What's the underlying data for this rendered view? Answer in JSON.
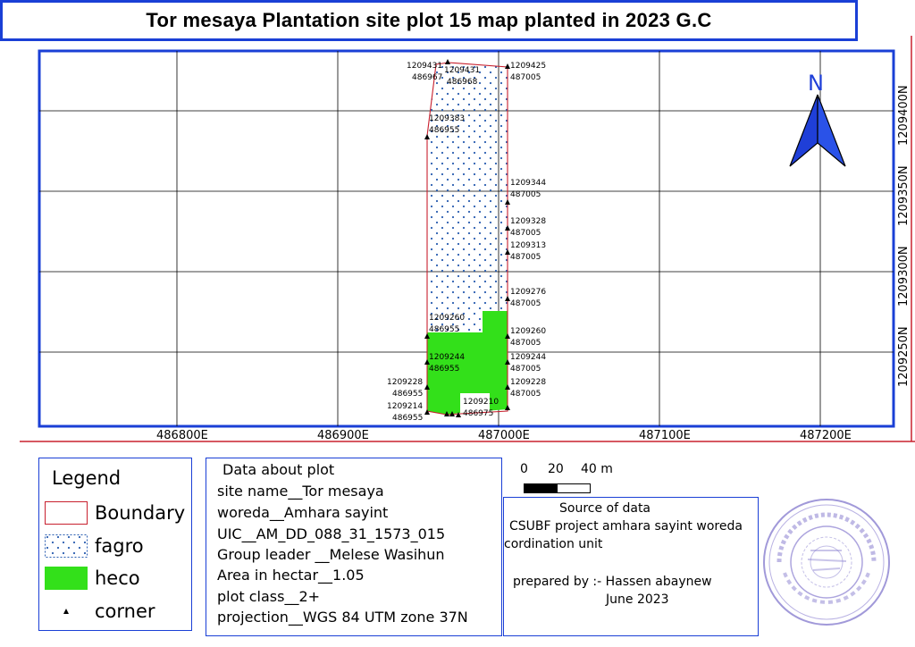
{
  "title": "Tor mesaya Plantation site plot 15 map planted in 2023 G.C",
  "map": {
    "north_label": "N",
    "easting_labels": [
      "486800E",
      "486900E",
      "487000E",
      "487100E",
      "487200E"
    ],
    "northing_labels": [
      "1209250N",
      "1209300N",
      "1209350N",
      "1209400N"
    ],
    "colors": {
      "boundary": "#c8202e",
      "fagro_dots": "#2a5db0",
      "heco": "#33e01a",
      "frame": "#1a3fd6",
      "north_arrow": "#1f3fd8"
    },
    "corner_points": [
      {
        "n": "1209431",
        "e": "486967"
      },
      {
        "n": "1209431",
        "e": "486968"
      },
      {
        "n": "1209425",
        "e": "487005"
      },
      {
        "n": "1209383",
        "e": "486955"
      },
      {
        "n": "1209344",
        "e": "487005"
      },
      {
        "n": "1209328",
        "e": "487005"
      },
      {
        "n": "1209313",
        "e": "487005"
      },
      {
        "n": "1209276",
        "e": "487005"
      },
      {
        "n": "1209260",
        "e": "486955"
      },
      {
        "n": "1209260",
        "e": "487005"
      },
      {
        "n": "1209244",
        "e": "486955"
      },
      {
        "n": "1209244",
        "e": "487005"
      },
      {
        "n": "1209228",
        "e": "486955"
      },
      {
        "n": "1209228",
        "e": "487005"
      },
      {
        "n": "1209214",
        "e": "486955"
      },
      {
        "n": "1209210",
        "e": "486975"
      }
    ]
  },
  "legend": {
    "title": "Legend",
    "items": [
      {
        "label": "Boundary",
        "type": "boundary"
      },
      {
        "label": "fagro",
        "type": "fagro"
      },
      {
        "label": "heco",
        "type": "heco"
      },
      {
        "label": "corner",
        "type": "corner"
      }
    ]
  },
  "plot_info": {
    "heading": "Data about plot",
    "lines": [
      "site name__Tor mesaya",
      "woreda__Amhara sayint",
      "UIC__AM_DD_088_31_1573_015",
      "Group leader __Melese Wasihun",
      "Area in hectar__1.05",
      "plot class__2+",
      "projection__WGS 84 UTM zone 37N"
    ]
  },
  "scale_bar": {
    "labels": [
      "0",
      "20",
      "40 m"
    ]
  },
  "source": {
    "heading": "Source of data",
    "line1": "CSUBF project amhara sayint woreda",
    "line2": "cordination unit",
    "prepared": "prepared by :- Hassen abaynew",
    "date": "June 2023"
  },
  "stamp": {
    "color": "#8a7fd0"
  }
}
